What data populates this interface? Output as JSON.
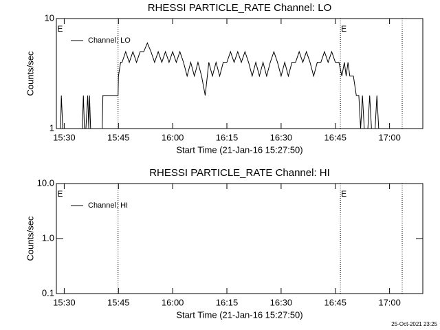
{
  "chart_data": [
    {
      "type": "line",
      "title": "RHESSI PARTICLE_RATE Channel: LO",
      "xlabel": "Start Time (21-Jan-16 15:27:50)",
      "ylabel": "Counts/sec",
      "log_y": true,
      "xlim": [
        927.83,
        1029.2
      ],
      "ylim": [
        1,
        10
      ],
      "yticks": [
        1,
        10
      ],
      "xticks": [
        {
          "value": 930,
          "label": "15:30"
        },
        {
          "value": 945,
          "label": "15:45"
        },
        {
          "value": 960,
          "label": "16:00"
        },
        {
          "value": 975,
          "label": "16:15"
        },
        {
          "value": 990,
          "label": "16:30"
        },
        {
          "value": 1005,
          "label": "16:45"
        },
        {
          "value": 1020,
          "label": "17:00"
        }
      ],
      "markers": [
        944.9,
        1006.4,
        1023.5
      ],
      "annotations": [
        {
          "text": "E",
          "x": 927.9
        },
        {
          "text": "E",
          "x": 1006.4
        }
      ],
      "legend": "upper left",
      "x": [
        928,
        929,
        929.2,
        929.6,
        930,
        935,
        935.3,
        935.6,
        936,
        936.5,
        936.8,
        937,
        937.3,
        940.5,
        940.7,
        944.9,
        945,
        945.6,
        946,
        947,
        948,
        949,
        950,
        951,
        952,
        953,
        954,
        955,
        956,
        957,
        958,
        959,
        960,
        961,
        962,
        963,
        964,
        965,
        966,
        967,
        968,
        969,
        970,
        971,
        972,
        973,
        974,
        975,
        976,
        977,
        978,
        979,
        980,
        981,
        982,
        983,
        984,
        985,
        986,
        987,
        988,
        989,
        990,
        991,
        992,
        993,
        994,
        995,
        996,
        997,
        998,
        999,
        1000,
        1001,
        1002,
        1003,
        1004,
        1005,
        1006,
        1006.8,
        1007.5,
        1008,
        1008.5,
        1009,
        1010,
        1010.8,
        1011.5,
        1012,
        1012.5,
        1013,
        1014,
        1014.5,
        1015,
        1016,
        1016.5,
        1017,
        1017.8
      ],
      "series": [
        {
          "name": "Channel: LO",
          "color": "#000000",
          "values": [
            1,
            1,
            2,
            1,
            1,
            1,
            2,
            1,
            1,
            2,
            1,
            2,
            1,
            1,
            2,
            2,
            3,
            4,
            4,
            5,
            4,
            5,
            4,
            5,
            5,
            6,
            5,
            4,
            5,
            4,
            5,
            4,
            5,
            4,
            5,
            4,
            3,
            4,
            3,
            4,
            3,
            2,
            4,
            3,
            4,
            3,
            4,
            4,
            5,
            4,
            5,
            4,
            5,
            4,
            3,
            4,
            3,
            4,
            3,
            4,
            5,
            4,
            3,
            4,
            3,
            4,
            4,
            5,
            4,
            5,
            4,
            3,
            4,
            4,
            5,
            4,
            5,
            4,
            4,
            3,
            4,
            3,
            4,
            3,
            3,
            2,
            2,
            1,
            2,
            1,
            1,
            2,
            1,
            1,
            2,
            1,
            1
          ]
        }
      ]
    },
    {
      "type": "line",
      "title": "RHESSI PARTICLE_RATE Channel: HI",
      "xlabel": "Start Time (21-Jan-16 15:27:50)",
      "ylabel": "Counts/sec",
      "log_y": true,
      "xlim": [
        927.83,
        1029.2
      ],
      "ylim": [
        0.1,
        10
      ],
      "yticks": [
        0.1,
        {
          "value": 1,
          "label": "1.0"
        },
        {
          "value": 10,
          "label": "10.0"
        }
      ],
      "xticks": [
        {
          "value": 930,
          "label": "15:30"
        },
        {
          "value": 945,
          "label": "15:45"
        },
        {
          "value": 960,
          "label": "16:00"
        },
        {
          "value": 975,
          "label": "16:15"
        },
        {
          "value": 990,
          "label": "16:30"
        },
        {
          "value": 1005,
          "label": "16:45"
        },
        {
          "value": 1020,
          "label": "17:00"
        }
      ],
      "markers": [
        944.9,
        1006.4,
        1023.5
      ],
      "annotations": [
        {
          "text": "E",
          "x": 927.9
        },
        {
          "text": "E",
          "x": 1006.4
        }
      ],
      "legend": "upper left",
      "x": [],
      "series": [
        {
          "name": "Channel: HI",
          "color": "#000000",
          "values": []
        }
      ]
    }
  ],
  "footer": "25-Oct-2021 23:25"
}
